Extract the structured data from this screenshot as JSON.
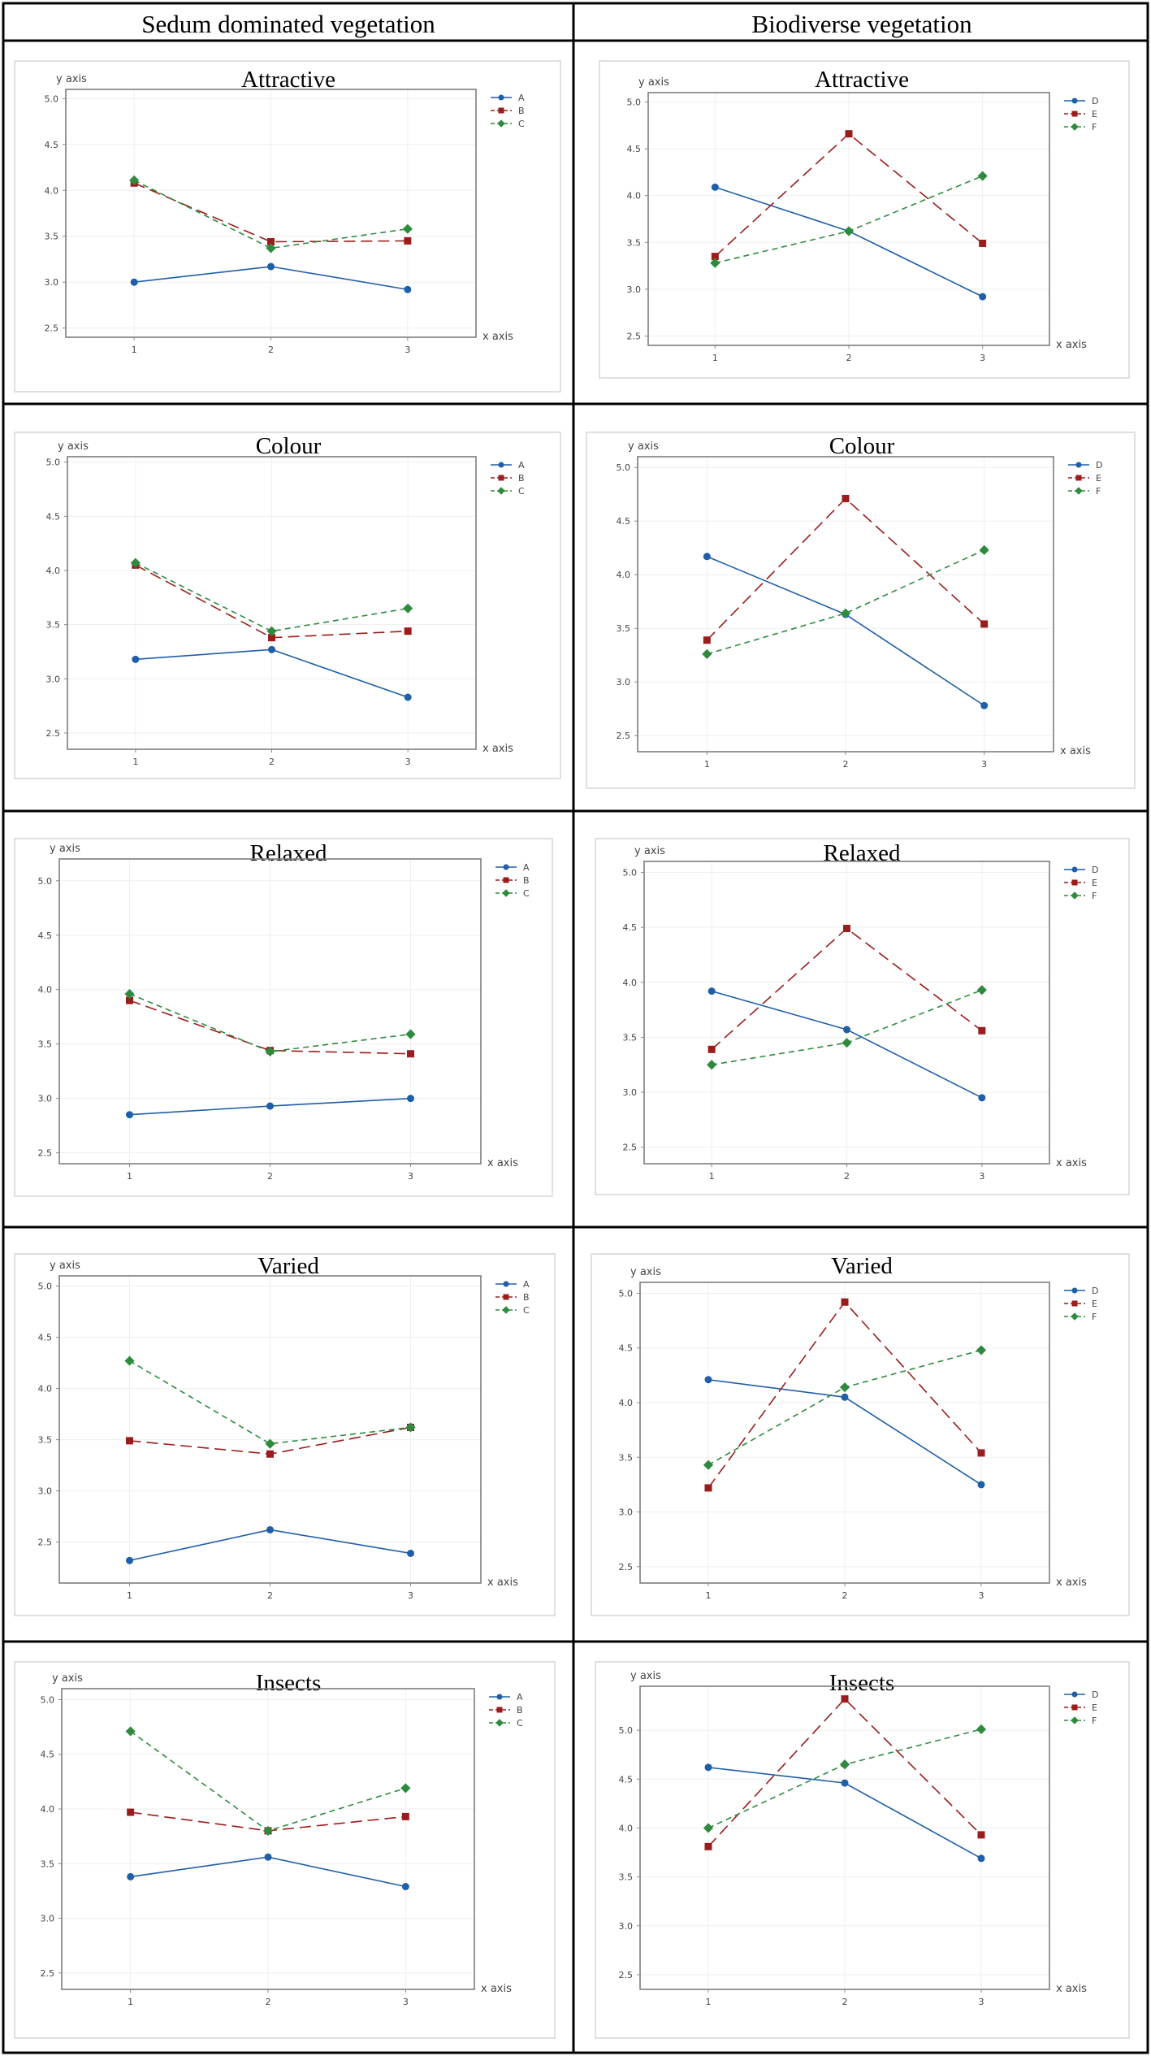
{
  "table": {
    "headers": [
      "Sedum dominated vegetation",
      "Biodiverse vegetation"
    ]
  },
  "styles": {
    "A": {
      "color": "#1f5ea8",
      "marker": "circle",
      "dash": ""
    },
    "B": {
      "color": "#9b1c1c",
      "marker": "square",
      "dash": "14,7"
    },
    "C": {
      "color": "#2e8b3e",
      "marker": "diamond",
      "dash": "7,5"
    },
    "D": {
      "color": "#1f5ea8",
      "marker": "circle",
      "dash": ""
    },
    "E": {
      "color": "#9b1c1c",
      "marker": "square",
      "dash": "14,7"
    },
    "F": {
      "color": "#2e8b3e",
      "marker": "diamond",
      "dash": "7,5"
    }
  },
  "chart_data": [
    {
      "type": "line",
      "title": "Attractive",
      "group": "Sedum dominated vegetation",
      "xlabel": "x axis",
      "ylabel": "y axis",
      "categories": [
        "1",
        "2",
        "3"
      ],
      "ylim": [
        2.4,
        5.1
      ],
      "yticks": [
        "2.5",
        "3.0",
        "3.5",
        "4.0",
        "4.5",
        "5.0"
      ],
      "series": [
        {
          "name": "A",
          "values": [
            3.0,
            3.17,
            2.92
          ]
        },
        {
          "name": "B",
          "values": [
            4.08,
            3.44,
            3.45
          ]
        },
        {
          "name": "C",
          "values": [
            4.11,
            3.37,
            3.58
          ]
        }
      ]
    },
    {
      "type": "line",
      "title": "Attractive",
      "group": "Biodiverse vegetation",
      "xlabel": "x axis",
      "ylabel": "y axis",
      "categories": [
        "1",
        "2",
        "3"
      ],
      "ylim": [
        2.4,
        5.1
      ],
      "yticks": [
        "2.5",
        "3.0",
        "3.5",
        "4.0",
        "4.5",
        "5.0"
      ],
      "series": [
        {
          "name": "D",
          "values": [
            4.09,
            3.62,
            2.92
          ]
        },
        {
          "name": "E",
          "values": [
            3.35,
            4.66,
            3.49
          ]
        },
        {
          "name": "F",
          "values": [
            3.28,
            3.62,
            4.21
          ]
        }
      ]
    },
    {
      "type": "line",
      "title": "Colour",
      "group": "Sedum dominated vegetation",
      "xlabel": "x axis",
      "ylabel": "y axis",
      "categories": [
        "1",
        "2",
        "3"
      ],
      "ylim": [
        2.35,
        5.05
      ],
      "yticks": [
        "2.5",
        "3.0",
        "3.5",
        "4.0",
        "4.5",
        "5.0"
      ],
      "series": [
        {
          "name": "A",
          "values": [
            3.18,
            3.27,
            2.83
          ]
        },
        {
          "name": "B",
          "values": [
            4.05,
            3.38,
            3.44
          ]
        },
        {
          "name": "C",
          "values": [
            4.07,
            3.44,
            3.65
          ]
        }
      ]
    },
    {
      "type": "line",
      "title": "Colour",
      "group": "Biodiverse vegetation",
      "xlabel": "x axis",
      "ylabel": "y axis",
      "categories": [
        "1",
        "2",
        "3"
      ],
      "ylim": [
        2.35,
        5.1
      ],
      "yticks": [
        "2.5",
        "3.0",
        "3.5",
        "4.0",
        "4.5",
        "5.0"
      ],
      "series": [
        {
          "name": "D",
          "values": [
            4.17,
            3.63,
            2.78
          ]
        },
        {
          "name": "E",
          "values": [
            3.39,
            4.71,
            3.54
          ]
        },
        {
          "name": "F",
          "values": [
            3.26,
            3.64,
            4.23
          ]
        }
      ]
    },
    {
      "type": "line",
      "title": "Relaxed",
      "group": "Sedum dominated vegetation",
      "xlabel": "x axis",
      "ylabel": "y axis",
      "categories": [
        "1",
        "2",
        "3"
      ],
      "ylim": [
        2.4,
        5.2
      ],
      "yticks": [
        "2.5",
        "3.0",
        "3.5",
        "4.0",
        "4.5",
        "5.0"
      ],
      "series": [
        {
          "name": "A",
          "values": [
            2.85,
            2.93,
            3.0
          ]
        },
        {
          "name": "B",
          "values": [
            3.9,
            3.44,
            3.41
          ]
        },
        {
          "name": "C",
          "values": [
            3.96,
            3.43,
            3.59
          ]
        }
      ]
    },
    {
      "type": "line",
      "title": "Relaxed",
      "group": "Biodiverse vegetation",
      "xlabel": "x axis",
      "ylabel": "y axis",
      "categories": [
        "1",
        "2",
        "3"
      ],
      "ylim": [
        2.35,
        5.1
      ],
      "yticks": [
        "2.5",
        "3.0",
        "3.5",
        "4.0",
        "4.5",
        "5.0"
      ],
      "series": [
        {
          "name": "D",
          "values": [
            3.92,
            3.57,
            2.95
          ]
        },
        {
          "name": "E",
          "values": [
            3.39,
            4.49,
            3.56
          ]
        },
        {
          "name": "F",
          "values": [
            3.25,
            3.45,
            3.93
          ]
        }
      ]
    },
    {
      "type": "line",
      "title": "Varied",
      "group": "Sedum dominated vegetation",
      "xlabel": "x axis",
      "ylabel": "y axis",
      "categories": [
        "1",
        "2",
        "3"
      ],
      "ylim": [
        2.1,
        5.1
      ],
      "yticks": [
        "2.5",
        "3.0",
        "3.5",
        "4.0",
        "4.5",
        "5.0"
      ],
      "series": [
        {
          "name": "A",
          "values": [
            2.32,
            2.62,
            2.39
          ]
        },
        {
          "name": "B",
          "values": [
            3.49,
            3.36,
            3.62
          ]
        },
        {
          "name": "C",
          "values": [
            4.27,
            3.46,
            3.62
          ]
        }
      ]
    },
    {
      "type": "line",
      "title": "Varied",
      "group": "Biodiverse vegetation",
      "xlabel": "x axis",
      "ylabel": "y axis",
      "categories": [
        "1",
        "2",
        "3"
      ],
      "ylim": [
        2.35,
        5.1
      ],
      "yticks": [
        "2.5",
        "3.0",
        "3.5",
        "4.0",
        "4.5",
        "5.0"
      ],
      "series": [
        {
          "name": "D",
          "values": [
            4.21,
            4.05,
            3.25
          ]
        },
        {
          "name": "E",
          "values": [
            3.22,
            4.92,
            3.54
          ]
        },
        {
          "name": "F",
          "values": [
            3.43,
            4.14,
            4.48
          ]
        }
      ]
    },
    {
      "type": "line",
      "title": "Insects",
      "group": "Sedum dominated vegetation",
      "xlabel": "x axis",
      "ylabel": "y axis",
      "categories": [
        "1",
        "2",
        "3"
      ],
      "ylim": [
        2.35,
        5.1
      ],
      "yticks": [
        "2.5",
        "3.0",
        "3.5",
        "4.0",
        "4.5",
        "5.0"
      ],
      "series": [
        {
          "name": "A",
          "values": [
            3.38,
            3.56,
            3.29
          ]
        },
        {
          "name": "B",
          "values": [
            3.97,
            3.8,
            3.93
          ]
        },
        {
          "name": "C",
          "values": [
            4.71,
            3.8,
            4.19
          ]
        }
      ]
    },
    {
      "type": "line",
      "title": "Insects",
      "group": "Biodiverse vegetation",
      "xlabel": "x axis",
      "ylabel": "y axis",
      "categories": [
        "1",
        "2",
        "3"
      ],
      "ylim": [
        2.35,
        5.45
      ],
      "yticks": [
        "2.5",
        "3.0",
        "3.5",
        "4.0",
        "4.5",
        "5.0"
      ],
      "series": [
        {
          "name": "D",
          "values": [
            4.62,
            4.46,
            3.69
          ]
        },
        {
          "name": "E",
          "values": [
            3.81,
            5.32,
            3.93
          ]
        },
        {
          "name": "F",
          "values": [
            4.0,
            4.65,
            5.01
          ]
        }
      ]
    }
  ]
}
